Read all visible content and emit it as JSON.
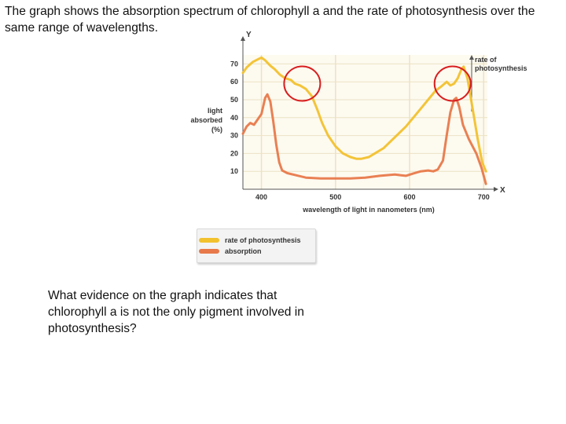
{
  "intro_text": "The graph shows the absorption spectrum of chlorophyll a and the rate of photosynthesis over the same range of wavelengths.",
  "question_text": "What evidence on the graph indicates that chlorophyll a is not the only pigment involved in photosynthesis?",
  "chart_data": {
    "type": "line",
    "xlabel": "wavelength of light in nanometers (nm)",
    "ylabel": [
      "light",
      "absorbed",
      "(%)"
    ],
    "x_axis_letter": "X",
    "y_axis_letter": "Y",
    "right_axis_label": [
      "rate of",
      "photosynthesis"
    ],
    "xlim": [
      375,
      705
    ],
    "ylim": [
      0,
      75
    ],
    "x_ticks": [
      400,
      500,
      600,
      700
    ],
    "y_ticks": [
      10,
      20,
      30,
      40,
      50,
      60,
      70
    ],
    "grid": true,
    "legend_position": "bottom",
    "series": [
      {
        "name": "rate of photosynthesis",
        "color": "#f2c12e",
        "points": [
          [
            375,
            65
          ],
          [
            380,
            68
          ],
          [
            388,
            71
          ],
          [
            395,
            72.5
          ],
          [
            400,
            73.5
          ],
          [
            405,
            72
          ],
          [
            412,
            69
          ],
          [
            418,
            67
          ],
          [
            425,
            64
          ],
          [
            432,
            62
          ],
          [
            440,
            61
          ],
          [
            445,
            59
          ],
          [
            452,
            58
          ],
          [
            460,
            56
          ],
          [
            468,
            52
          ],
          [
            475,
            45
          ],
          [
            482,
            37
          ],
          [
            490,
            30
          ],
          [
            500,
            24
          ],
          [
            510,
            20
          ],
          [
            520,
            18
          ],
          [
            528,
            17
          ],
          [
            535,
            17
          ],
          [
            545,
            18
          ],
          [
            555,
            20.5
          ],
          [
            565,
            23
          ],
          [
            575,
            27
          ],
          [
            585,
            31
          ],
          [
            595,
            35
          ],
          [
            605,
            40
          ],
          [
            615,
            45
          ],
          [
            625,
            50
          ],
          [
            635,
            55
          ],
          [
            643,
            57.5
          ],
          [
            650,
            60
          ],
          [
            655,
            58
          ],
          [
            660,
            59
          ],
          [
            665,
            62
          ],
          [
            670,
            67
          ],
          [
            673,
            68.5
          ],
          [
            678,
            62
          ],
          [
            685,
            45
          ],
          [
            692,
            28
          ],
          [
            698,
            15
          ],
          [
            703,
            10
          ]
        ]
      },
      {
        "name": "absorption",
        "color": "#e8794a",
        "points": [
          [
            375,
            31
          ],
          [
            380,
            35
          ],
          [
            385,
            37
          ],
          [
            390,
            36
          ],
          [
            395,
            39
          ],
          [
            400,
            42
          ],
          [
            405,
            51
          ],
          [
            408,
            53
          ],
          [
            412,
            49
          ],
          [
            416,
            38
          ],
          [
            420,
            25
          ],
          [
            424,
            15
          ],
          [
            428,
            10.5
          ],
          [
            435,
            9
          ],
          [
            445,
            8
          ],
          [
            460,
            6.5
          ],
          [
            480,
            6
          ],
          [
            500,
            6
          ],
          [
            520,
            6
          ],
          [
            540,
            6.5
          ],
          [
            560,
            7.5
          ],
          [
            580,
            8.2
          ],
          [
            595,
            7.5
          ],
          [
            605,
            8.8
          ],
          [
            615,
            10
          ],
          [
            625,
            10.5
          ],
          [
            632,
            10
          ],
          [
            638,
            11
          ],
          [
            645,
            16
          ],
          [
            650,
            30
          ],
          [
            655,
            43
          ],
          [
            660,
            50
          ],
          [
            663,
            51
          ],
          [
            667,
            46
          ],
          [
            672,
            36
          ],
          [
            680,
            28
          ],
          [
            690,
            20
          ],
          [
            697,
            12
          ],
          [
            703,
            3
          ]
        ]
      }
    ],
    "annotations": [
      {
        "shape": "circle",
        "color": "#d81f1f",
        "cx_nm": 455,
        "cy_pct": 59
      },
      {
        "shape": "circle",
        "color": "#d81f1f",
        "cx_nm": 658,
        "cy_pct": 59
      }
    ]
  }
}
